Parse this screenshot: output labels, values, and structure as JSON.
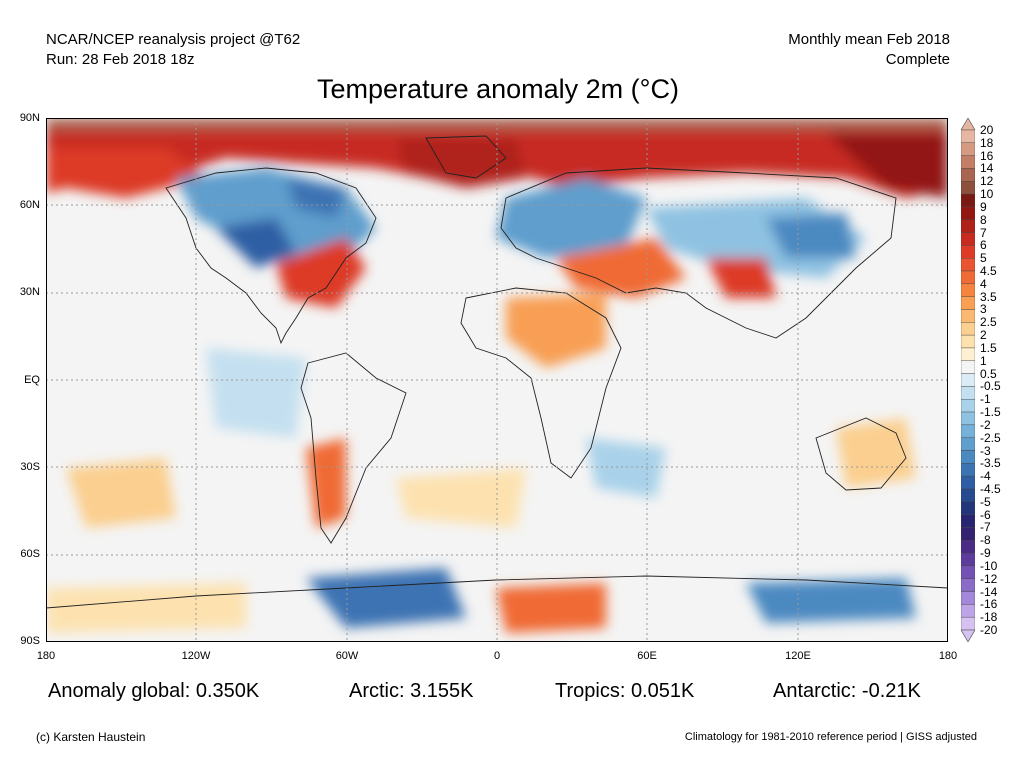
{
  "header": {
    "line1_left": "NCAR/NCEP reanalysis project @T62",
    "line2_left": "Run: 28 Feb 2018 18z",
    "line1_right": "Monthly mean Feb 2018",
    "line2_right": "Complete"
  },
  "title": "Temperature anomaly 2m (°C)",
  "axes": {
    "lat_labels": [
      "90N",
      "60N",
      "30N",
      "EQ",
      "30S",
      "60S",
      "90S"
    ],
    "lon_labels": [
      "180",
      "120W",
      "60W",
      "0",
      "60E",
      "120E",
      "180"
    ]
  },
  "colorbar": {
    "labels": [
      "20",
      "18",
      "16",
      "14",
      "12",
      "10",
      "9",
      "8",
      "7",
      "6",
      "5",
      "4.5",
      "4",
      "3.5",
      "3",
      "2.5",
      "2",
      "1.5",
      "1",
      "0.5",
      "-0.5",
      "-1",
      "-1.5",
      "-2",
      "-2.5",
      "-3",
      "-3.5",
      "-4",
      "-4.5",
      "-5",
      "-6",
      "-7",
      "-8",
      "-9",
      "-10",
      "-12",
      "-14",
      "-16",
      "-18",
      "-20"
    ],
    "colors": [
      "#e7b6a3",
      "#d69a83",
      "#c27e66",
      "#a96552",
      "#8e4f3d",
      "#7a1a12",
      "#931813",
      "#b0211a",
      "#c72b20",
      "#dd3b26",
      "#ea5430",
      "#f06a35",
      "#f5843f",
      "#f89f54",
      "#fab870",
      "#fbcf8f",
      "#fde2b0",
      "#fef0d1",
      "#f4f4f4",
      "#dcecf7",
      "#c4e0f0",
      "#a9d2ea",
      "#8fc2e2",
      "#76b1d9",
      "#5f9ecd",
      "#4b89c1",
      "#3c73b3",
      "#2f5ea4",
      "#26498f",
      "#23367c",
      "#272571",
      "#33226f",
      "#4a2c86",
      "#5e3c9d",
      "#7352b3",
      "#8b6bc8",
      "#a387d8",
      "#bca4e6",
      "#d5c2f0"
    ]
  },
  "stats": {
    "global": "Anomaly global: 0.350K",
    "arctic": "Arctic: 3.155K",
    "tropics": "Tropics: 0.051K",
    "antarctic": "Antarctic: -0.21K"
  },
  "footer": {
    "credit": "(c) Karsten Haustein",
    "climatology": "Climatology for 1981-2010 reference period | GISS adjusted"
  }
}
